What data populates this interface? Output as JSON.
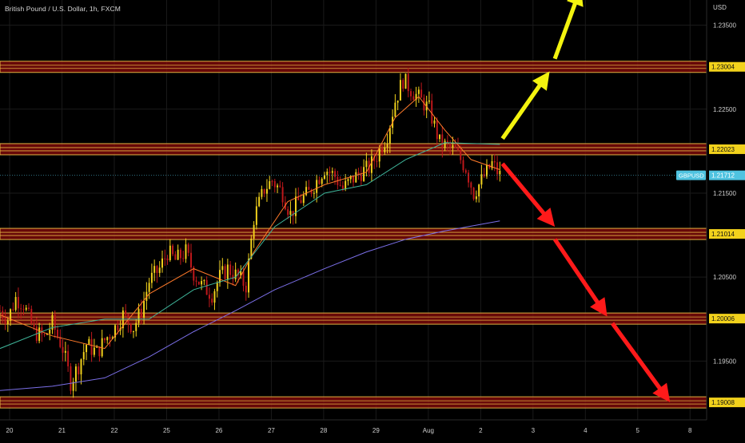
{
  "header": {
    "title": "British Pound / U.S. Dollar, 1h, FXCM"
  },
  "price_axis": {
    "unit_label": "USD"
  },
  "colors": {
    "background": "#000000",
    "candle_up": "#f2d21c",
    "candle_down": "#c0181b",
    "level_fill": "#8a0b0b",
    "level_border": "#e0b040",
    "level_label_bg": "#f2d21c",
    "current_price_bg": "#4fc3e0",
    "ma_fast": "#ff7a2a",
    "ma_mid": "#3fb59a",
    "ma_slow": "#7b6fe8",
    "arrow_up": "#f3f30f",
    "arrow_down": "#ff1a1a"
  },
  "chart_data": {
    "type": "candlestick",
    "symbol": "GBPUSD",
    "timeframe": "1h",
    "ylim": [
      1.188,
      1.238
    ],
    "y_ticks": [
      "1.23500",
      "1.23000",
      "1.22500",
      "1.22000",
      "1.21500",
      "1.21000",
      "1.20500",
      "1.20000",
      "1.19500",
      "1.19000"
    ],
    "x_ticks": [
      "20",
      "21",
      "22",
      "25",
      "26",
      "27",
      "28",
      "29",
      "Aug",
      "2",
      "3",
      "4",
      "5",
      "8"
    ],
    "current_price": {
      "label": "GBPUSD",
      "value": "1.21712"
    },
    "levels": [
      {
        "value": 1.23004,
        "label": "1.23004"
      },
      {
        "value": 1.22023,
        "label": "1.22023"
      },
      {
        "value": 1.21014,
        "label": "1.21014"
      },
      {
        "value": 1.20006,
        "label": "1.20006"
      },
      {
        "value": 1.19008,
        "label": "1.19008"
      }
    ],
    "close_path": [
      [
        0,
        1.201
      ],
      [
        3,
        1.2
      ],
      [
        6,
        1.2025
      ],
      [
        9,
        1.2018
      ],
      [
        13,
        1.1985
      ],
      [
        17,
        1.1978
      ],
      [
        20,
        1.1995
      ],
      [
        24,
        1.1965
      ],
      [
        27,
        1.1925
      ],
      [
        30,
        1.1945
      ],
      [
        33,
        1.197
      ],
      [
        37,
        1.196
      ],
      [
        40,
        1.1975
      ],
      [
        44,
        1.199
      ],
      [
        47,
        1.2005
      ],
      [
        51,
        1.199
      ],
      [
        54,
        1.201
      ],
      [
        57,
        1.2045
      ],
      [
        61,
        1.206
      ],
      [
        64,
        1.208
      ],
      [
        67,
        1.207
      ],
      [
        71,
        1.208
      ],
      [
        74,
        1.2055
      ],
      [
        77,
        1.204
      ],
      [
        81,
        1.203
      ],
      [
        84,
        1.205
      ],
      [
        87,
        1.206
      ],
      [
        91,
        1.205
      ],
      [
        94,
        1.204
      ],
      [
        97,
        1.212
      ],
      [
        101,
        1.2155
      ],
      [
        104,
        1.2165
      ],
      [
        108,
        1.215
      ],
      [
        111,
        1.2125
      ],
      [
        114,
        1.214
      ],
      [
        118,
        1.215
      ],
      [
        121,
        1.2165
      ],
      [
        124,
        1.218
      ],
      [
        128,
        1.217
      ],
      [
        131,
        1.2155
      ],
      [
        134,
        1.2165
      ],
      [
        138,
        1.2175
      ],
      [
        141,
        1.218
      ],
      [
        144,
        1.2195
      ],
      [
        148,
        1.222
      ],
      [
        151,
        1.226
      ],
      [
        154,
        1.2285
      ],
      [
        158,
        1.227
      ],
      [
        161,
        1.226
      ],
      [
        164,
        1.225
      ],
      [
        168,
        1.221
      ],
      [
        171,
        1.2205
      ],
      [
        174,
        1.22
      ],
      [
        178,
        1.218
      ],
      [
        181,
        1.215
      ],
      [
        184,
        1.2165
      ],
      [
        188,
        1.2185
      ],
      [
        191,
        1.2171
      ]
    ],
    "moving_averages": [
      {
        "color_key": "ma_fast",
        "points": [
          [
            0,
            1.2005
          ],
          [
            20,
            1.198
          ],
          [
            40,
            1.1965
          ],
          [
            57,
            1.203
          ],
          [
            74,
            1.206
          ],
          [
            90,
            1.204
          ],
          [
            97,
            1.208
          ],
          [
            110,
            1.214
          ],
          [
            124,
            1.216
          ],
          [
            140,
            1.2175
          ],
          [
            151,
            1.224
          ],
          [
            160,
            1.2265
          ],
          [
            170,
            1.2225
          ],
          [
            180,
            1.219
          ],
          [
            191,
            1.2178
          ]
        ]
      },
      {
        "color_key": "ma_mid",
        "points": [
          [
            0,
            1.1965
          ],
          [
            20,
            1.199
          ],
          [
            40,
            1.2
          ],
          [
            57,
            1.2
          ],
          [
            74,
            1.2035
          ],
          [
            90,
            1.205
          ],
          [
            105,
            1.211
          ],
          [
            124,
            1.215
          ],
          [
            140,
            1.216
          ],
          [
            155,
            1.219
          ],
          [
            170,
            1.221
          ],
          [
            191,
            1.2208
          ]
        ]
      },
      {
        "color_key": "ma_slow",
        "points": [
          [
            0,
            1.1915
          ],
          [
            20,
            1.192
          ],
          [
            40,
            1.193
          ],
          [
            57,
            1.1955
          ],
          [
            74,
            1.1985
          ],
          [
            90,
            1.201
          ],
          [
            105,
            1.2035
          ],
          [
            124,
            1.206
          ],
          [
            140,
            1.208
          ],
          [
            155,
            1.2095
          ],
          [
            170,
            1.2105
          ],
          [
            191,
            1.2117
          ]
        ]
      }
    ],
    "annotations": [
      {
        "type": "arrow-up",
        "color_key": "arrow_up",
        "from": [
          192,
          1.2215
        ],
        "to": [
          210,
          1.2295
        ]
      },
      {
        "type": "arrow-up",
        "color_key": "arrow_up",
        "from": [
          212,
          1.231
        ],
        "to": [
          222,
          1.2395
        ]
      },
      {
        "type": "arrow-down",
        "color_key": "arrow_down",
        "from": [
          192,
          1.2185
        ],
        "to": [
          212,
          1.211
        ]
      },
      {
        "type": "arrow-down",
        "color_key": "arrow_down",
        "from": [
          212,
          1.2095
        ],
        "to": [
          232,
          1.2003
        ]
      },
      {
        "type": "arrow-down",
        "color_key": "arrow_down",
        "from": [
          234,
          1.1995
        ],
        "to": [
          256,
          1.1901
        ]
      }
    ]
  }
}
